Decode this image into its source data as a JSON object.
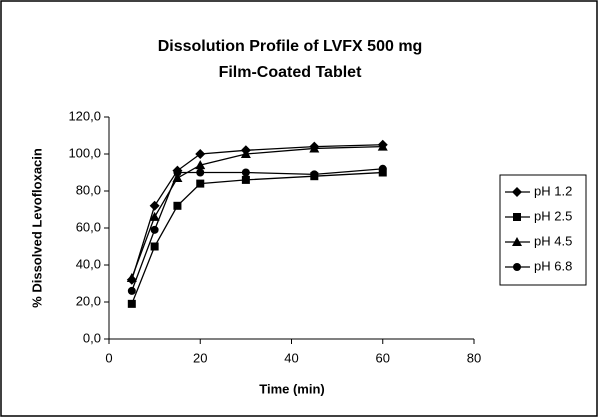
{
  "chart_data": {
    "type": "line",
    "title": "Dissolution Profile of LVFX 500 mg",
    "subtitle": "Film-Coated Tablet",
    "x_label": "Time (min)",
    "y_label": "% Dissolved Levofloxacin",
    "x": [
      5,
      10,
      15,
      20,
      30,
      45,
      60
    ],
    "series": [
      {
        "name": "pH 1.2",
        "color": "#000000",
        "marker": "diamond",
        "values": [
          32,
          72,
          91,
          100,
          102,
          104,
          105
        ]
      },
      {
        "name": "pH 2.5",
        "color": "#000000",
        "marker": "square",
        "values": [
          19,
          50,
          72,
          84,
          86,
          88,
          90
        ]
      },
      {
        "name": "pH 4.5",
        "color": "#000000",
        "marker": "triangle",
        "values": [
          33,
          66,
          87,
          94,
          100,
          103,
          104
        ]
      },
      {
        "name": "pH 6.8",
        "color": "#000000",
        "marker": "circle",
        "values": [
          26,
          59,
          90,
          90,
          90,
          89,
          92
        ]
      }
    ],
    "xlim": [
      0,
      80
    ],
    "xticks": [
      0,
      20,
      40,
      60,
      80
    ],
    "ylim": [
      0,
      120
    ],
    "yticks": [
      {
        "value": 0,
        "label": "0,0"
      },
      {
        "value": 20,
        "label": "20,0"
      },
      {
        "value": 40,
        "label": "40,0"
      },
      {
        "value": 60,
        "label": "60,0"
      },
      {
        "value": 80,
        "label": "80,0"
      },
      {
        "value": 100,
        "label": "100,0"
      },
      {
        "value": 120,
        "label": "120,0"
      }
    ],
    "grid": false,
    "legend": "right"
  }
}
